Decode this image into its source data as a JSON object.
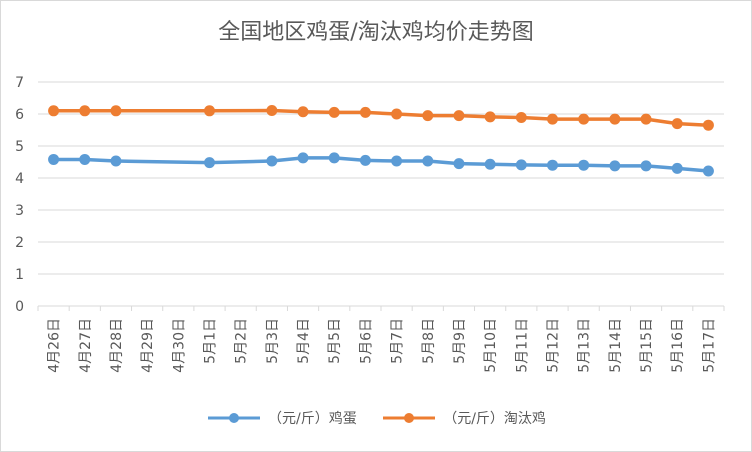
{
  "chart_data": {
    "type": "line",
    "title": "全国地区鸡蛋/淘汰鸡均价走势图",
    "xlabel": "",
    "ylabel": "",
    "ylim": [
      0,
      7
    ],
    "yticks": [
      "0",
      "1",
      "2",
      "3",
      "4",
      "5",
      "6",
      "7"
    ],
    "grid": true,
    "legend_position": "bottom",
    "categories": [
      "4月26日",
      "4月27日",
      "4月28日",
      "4月29日",
      "4月30日",
      "5月1日",
      "5月2日",
      "5月3日",
      "5月4日",
      "5月5日",
      "5月6日",
      "5月7日",
      "5月8日",
      "5月9日",
      "5月10日",
      "5月11日",
      "5月12日",
      "5月13日",
      "5月14日",
      "5月15日",
      "5月16日",
      "5月17日"
    ],
    "series": [
      {
        "name": "（元/斤）鸡蛋",
        "color": "#5b9bd5",
        "values": [
          4.58,
          4.58,
          4.53,
          null,
          null,
          4.48,
          null,
          4.53,
          4.63,
          4.63,
          4.55,
          4.53,
          4.53,
          4.45,
          4.43,
          4.41,
          4.4,
          4.4,
          4.38,
          4.38,
          4.3,
          4.22
        ]
      },
      {
        "name": "（元/斤）淘汰鸡",
        "color": "#ed7d31",
        "values": [
          6.1,
          6.1,
          6.1,
          null,
          null,
          6.1,
          null,
          6.11,
          6.07,
          6.05,
          6.05,
          6.0,
          5.95,
          5.95,
          5.91,
          5.89,
          5.84,
          5.84,
          5.84,
          5.84,
          5.7,
          5.65
        ]
      }
    ]
  },
  "colors": {
    "grid": "#d9d9d9",
    "text": "#595959"
  }
}
